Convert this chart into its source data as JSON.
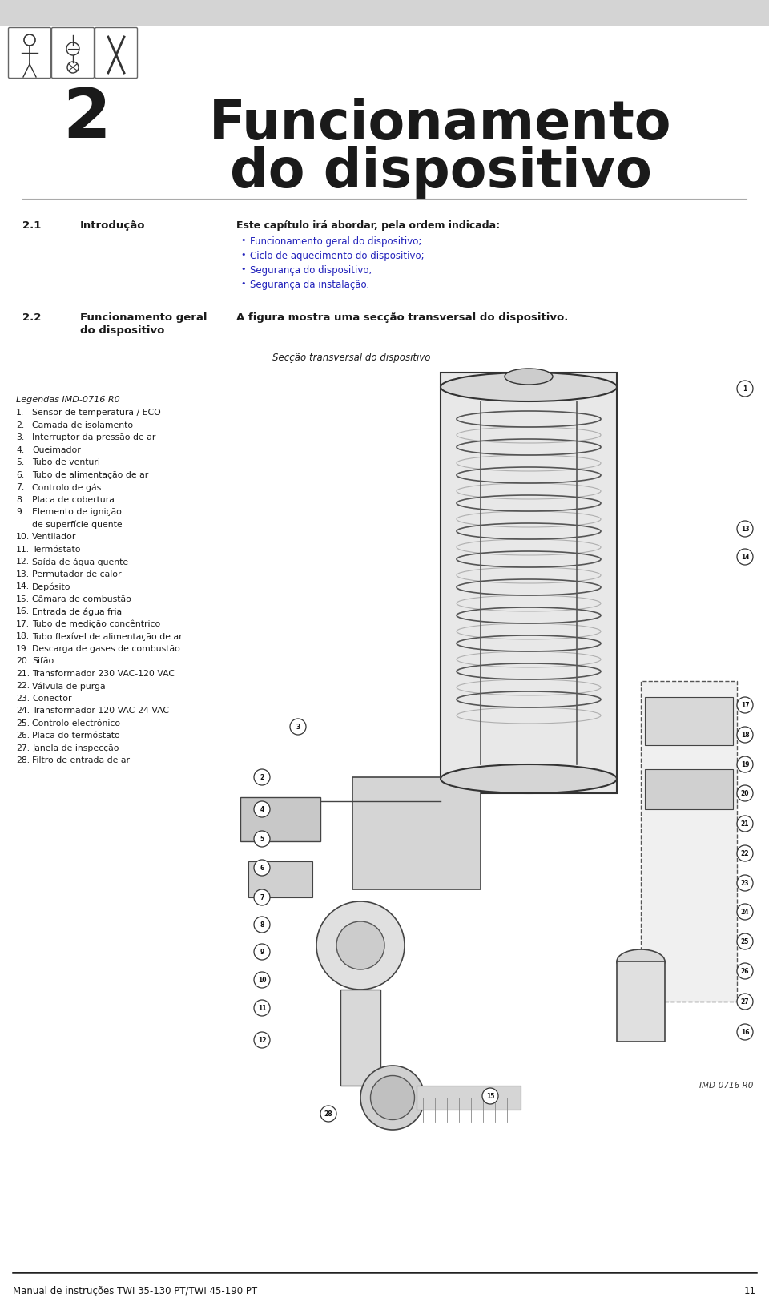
{
  "bg_color": "#ffffff",
  "header_bg": "#d4d4d4",
  "chapter_number": "2",
  "chapter_title_line1": "Funcionamento",
  "chapter_title_line2": "do dispositivo",
  "section_21_label": "2.1",
  "section_21_title": "Introdução",
  "section_21_intro": "Este capítulo irá abordar, pela ordem indicada:",
  "section_21_bullets": [
    "Funcionamento geral do dispositivo;",
    "Ciclo de aquecimento do dispositivo;",
    "Segurança do dispositivo;",
    "Segurança da instalação."
  ],
  "section_22_label": "2.2",
  "section_22_title_line1": "Funcionamento geral",
  "section_22_title_line2": "do dispositivo",
  "section_22_text": "A figura mostra uma secção transversal do dispositivo.",
  "diagram_title": "Secção transversal do dispositivo",
  "legends_title": "Legendas IMD-0716 R0",
  "legend_items_num": [
    "1.",
    "2.",
    "3.",
    "4.",
    "5.",
    "6.",
    "7.",
    "8.",
    "9.",
    "",
    "10.",
    "11.",
    "12.",
    "13.",
    "14.",
    "15.",
    "16.",
    "17.",
    "18.",
    "19.",
    "20.",
    "21.",
    "22.",
    "23.",
    "24.",
    "25.",
    "26.",
    "27.",
    "28."
  ],
  "legend_items_text": [
    "Sensor de temperatura / ECO",
    "Camada de isolamento",
    "Interruptor da pressão de ar",
    "Queimador",
    "Tubo de venturi",
    "Tubo de alimentação de ar",
    "Controlo de gás",
    "Placa de cobertura",
    "Elemento de ignição",
    "de superfície quente",
    "Ventilador",
    "Termóstato",
    "Saída de água quente",
    "Permutador de calor",
    "Depósito",
    "Câmara de combustão",
    "Entrada de água fria",
    "Tubo de medição concêntrico",
    "Tubo flexível de alimentação de ar",
    "Descarga de gases de combustão",
    "Sifão",
    "Transformador 230 VAC-120 VAC",
    "Válvula de purga",
    "Conector",
    "Transformador 120 VAC-24 VAC",
    "Controlo electrónico",
    "Placa do termóstato",
    "Janela de inspecção",
    "Filtro de entrada de ar"
  ],
  "diagram_ref": "IMD-0716 R0",
  "footer_text": "Manual de instruções TWI 35-130 PT/TWI 45-190 PT",
  "footer_page": "11",
  "blue_color": "#1a1aaa",
  "dark_color": "#1a1a1a",
  "bullet_color": "#2222bb",
  "line_color": "#444444"
}
